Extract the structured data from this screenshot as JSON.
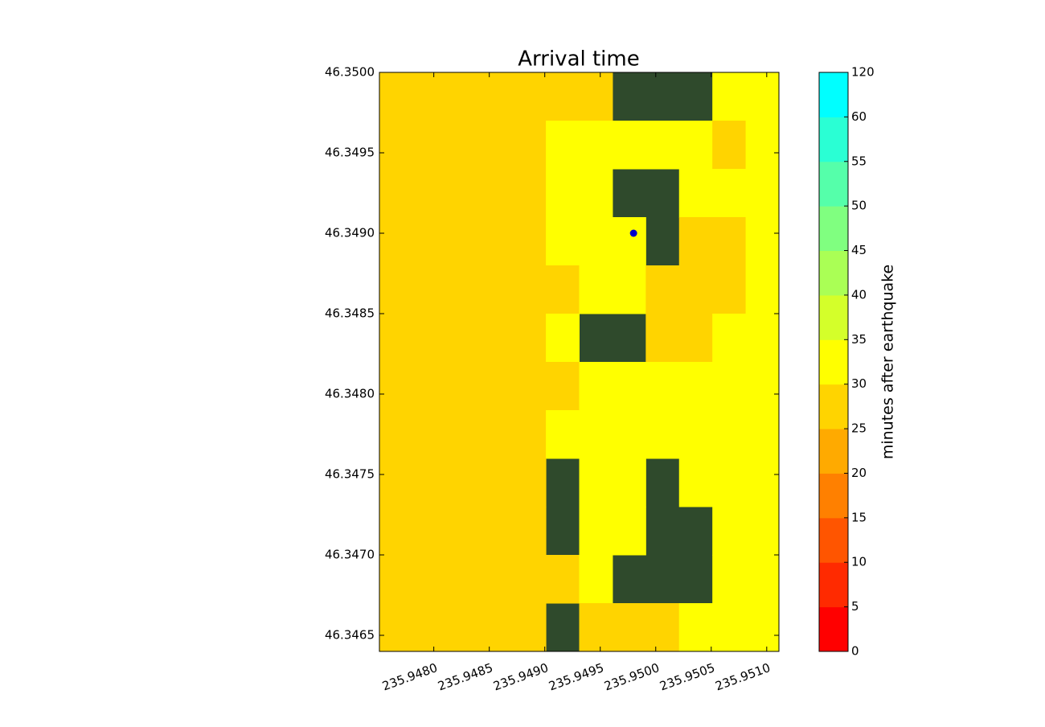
{
  "chart_data": {
    "type": "contourf",
    "title": "Arrival time",
    "colorbar": {
      "label": "minutes after earthquake",
      "levels": [
        0,
        5,
        10,
        15,
        20,
        25,
        30,
        35,
        40,
        45,
        50,
        55,
        60,
        120
      ],
      "colors": [
        "#ff0000",
        "#ff2a00",
        "#ff5500",
        "#ff8000",
        "#ffaa00",
        "#ffd400",
        "#ffff00",
        "#d4ff2a",
        "#aaff55",
        "#80ff80",
        "#55ffaa",
        "#2affd4",
        "#00ffff"
      ]
    },
    "xlim": [
      235.94751,
      235.95111
    ],
    "ylim": [
      46.3464,
      46.35
    ],
    "xticks": [
      {
        "value": 235.948,
        "label": "235.9480"
      },
      {
        "value": 235.9485,
        "label": "235.9485"
      },
      {
        "value": 235.949,
        "label": "235.9490"
      },
      {
        "value": 235.9495,
        "label": "235.9495"
      },
      {
        "value": 235.95,
        "label": "235.9500"
      },
      {
        "value": 235.9505,
        "label": "235.9505"
      },
      {
        "value": 235.951,
        "label": "235.9510"
      }
    ],
    "yticks": [
      {
        "value": 46.3465,
        "label": "46.3465"
      },
      {
        "value": 46.347,
        "label": "46.3470"
      },
      {
        "value": 46.3475,
        "label": "46.3475"
      },
      {
        "value": 46.348,
        "label": "46.3480"
      },
      {
        "value": 46.3485,
        "label": "46.3485"
      },
      {
        "value": 46.349,
        "label": "46.3490"
      },
      {
        "value": 46.3495,
        "label": "46.3495"
      },
      {
        "value": 46.35,
        "label": "46.3500"
      }
    ],
    "z": [
      [
        27,
        27,
        27,
        27,
        27,
        27,
        27,
        null,
        null,
        null,
        32,
        32
      ],
      [
        27,
        27,
        27,
        27,
        27,
        32,
        32,
        32,
        32,
        32,
        27,
        32
      ],
      [
        27,
        27,
        27,
        27,
        27,
        32,
        32,
        null,
        null,
        32,
        32,
        32
      ],
      [
        27,
        27,
        27,
        27,
        27,
        32,
        32,
        32,
        null,
        27,
        27,
        32
      ],
      [
        27,
        27,
        27,
        27,
        27,
        27,
        32,
        32,
        27,
        27,
        27,
        32
      ],
      [
        27,
        27,
        27,
        27,
        27,
        32,
        null,
        null,
        27,
        27,
        32,
        32
      ],
      [
        27,
        27,
        27,
        27,
        27,
        27,
        32,
        32,
        32,
        32,
        32,
        32
      ],
      [
        27,
        27,
        27,
        27,
        27,
        32,
        32,
        32,
        32,
        32,
        32,
        32
      ],
      [
        27,
        27,
        27,
        27,
        27,
        null,
        32,
        32,
        null,
        32,
        32,
        32
      ],
      [
        27,
        27,
        27,
        27,
        27,
        null,
        32,
        32,
        null,
        null,
        32,
        32
      ],
      [
        27,
        27,
        27,
        27,
        27,
        27,
        32,
        null,
        null,
        null,
        32,
        32
      ],
      [
        27,
        27,
        27,
        27,
        27,
        null,
        27,
        27,
        27,
        32,
        32,
        32
      ]
    ],
    "points": {
      "x": [
        235.9498
      ],
      "y": [
        46.349
      ],
      "color": "#0000cc"
    }
  }
}
